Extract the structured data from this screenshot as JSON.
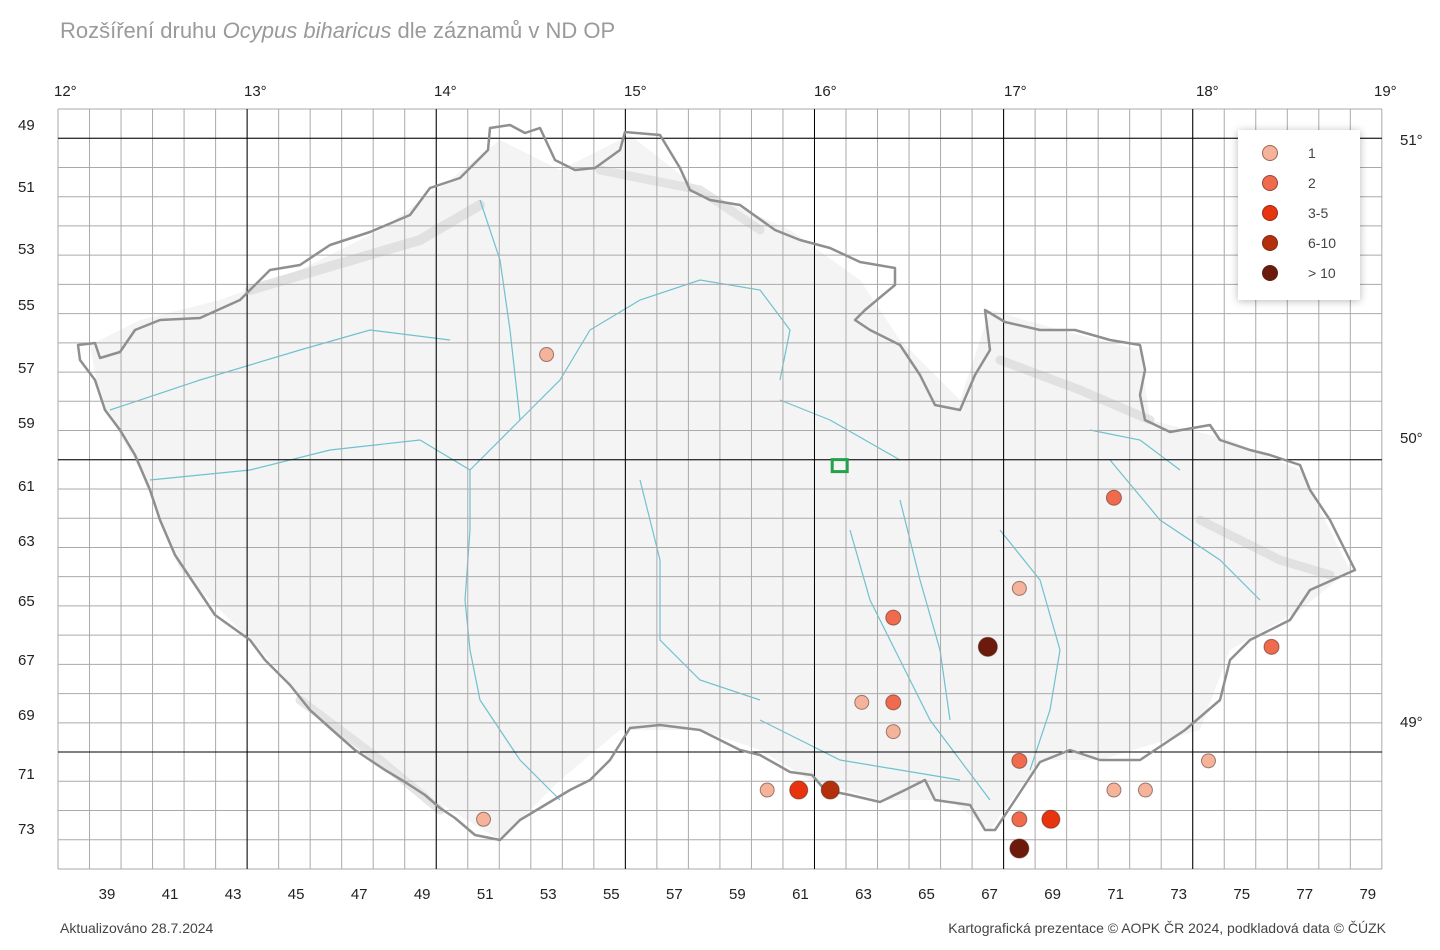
{
  "title": {
    "prefix": "Rozšíření druhu ",
    "species": "Ocypus biharicus",
    "suffix": " dle záznamů v ND OP"
  },
  "longitude_labels": [
    "12°",
    "13°",
    "14°",
    "15°",
    "16°",
    "17°",
    "18°",
    "19°"
  ],
  "latitude_labels": [
    "51°",
    "50°",
    "49°"
  ],
  "row_labels": [
    "49",
    "51",
    "53",
    "55",
    "57",
    "59",
    "61",
    "63",
    "65",
    "67",
    "69",
    "71",
    "73"
  ],
  "column_labels": [
    "39",
    "41",
    "43",
    "45",
    "47",
    "49",
    "51",
    "53",
    "55",
    "57",
    "59",
    "61",
    "63",
    "65",
    "67",
    "69",
    "71",
    "73",
    "75",
    "77",
    "79"
  ],
  "legend": [
    {
      "label": "1",
      "color": "#f4b39a"
    },
    {
      "label": "2",
      "color": "#f06a4e"
    },
    {
      "label": "3-5",
      "color": "#e8330f"
    },
    {
      "label": "6-10",
      "color": "#b3300c"
    },
    {
      "label": "> 10",
      "color": "#6b1a0b"
    }
  ],
  "records": [
    {
      "col": 53.5,
      "row": 56.4,
      "cls": 0
    },
    {
      "col": 71.5,
      "row": 61.3,
      "cls": 1
    },
    {
      "col": 68.5,
      "row": 64.4,
      "cls": 0
    },
    {
      "col": 64.5,
      "row": 65.4,
      "cls": 1
    },
    {
      "col": 67.5,
      "row": 66.4,
      "cls": 4
    },
    {
      "col": 76.5,
      "row": 66.4,
      "cls": 1
    },
    {
      "col": 63.5,
      "row": 68.3,
      "cls": 0
    },
    {
      "col": 64.5,
      "row": 68.3,
      "cls": 1
    },
    {
      "col": 64.5,
      "row": 69.3,
      "cls": 0
    },
    {
      "col": 68.5,
      "row": 70.3,
      "cls": 1
    },
    {
      "col": 74.5,
      "row": 70.3,
      "cls": 0
    },
    {
      "col": 60.5,
      "row": 71.3,
      "cls": 0
    },
    {
      "col": 61.5,
      "row": 71.3,
      "cls": 2
    },
    {
      "col": 62.5,
      "row": 71.3,
      "cls": 3
    },
    {
      "col": 71.5,
      "row": 71.3,
      "cls": 0
    },
    {
      "col": 72.5,
      "row": 71.3,
      "cls": 0
    },
    {
      "col": 51.5,
      "row": 72.3,
      "cls": 0
    },
    {
      "col": 68.5,
      "row": 72.3,
      "cls": 1
    },
    {
      "col": 69.5,
      "row": 72.3,
      "cls": 2
    },
    {
      "col": 68.5,
      "row": 73.3,
      "cls": 4
    }
  ],
  "marker_square": {
    "col": 62.8,
    "row": 60.2,
    "color": "#22a24a"
  },
  "footer_left": "Aktualizováno 28.7.2024",
  "footer_right": "Kartografická prezentace © AOPK ČR 2024, podkladová data © ČÚZK"
}
